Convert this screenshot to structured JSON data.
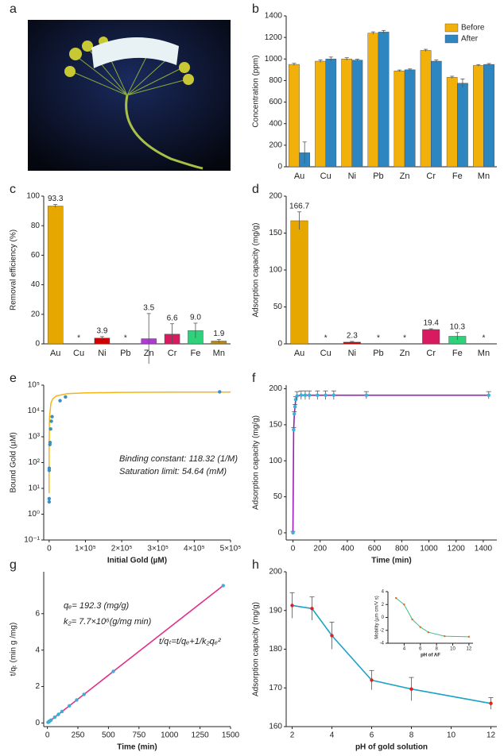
{
  "image_panel": {
    "panel": "a"
  },
  "chart_data": [
    {
      "panel": "b",
      "type": "bar",
      "ylabel": "Concentration (ppm)",
      "categories": [
        "Au",
        "Cu",
        "Ni",
        "Pb",
        "Zn",
        "Cr",
        "Fe",
        "Mn"
      ],
      "series": [
        {
          "name": "Before",
          "color": "#f2b00a",
          "values": [
            950,
            980,
            1000,
            1240,
            890,
            1080,
            830,
            940
          ],
          "errors": [
            10,
            12,
            12,
            12,
            8,
            10,
            10,
            8
          ]
        },
        {
          "name": "After",
          "color": "#2e86c1",
          "values": [
            130,
            1000,
            990,
            1250,
            900,
            980,
            775,
            950
          ],
          "errors": [
            100,
            18,
            8,
            15,
            8,
            12,
            40,
            8
          ]
        }
      ],
      "ylim": [
        0,
        1400
      ],
      "yticks": [
        0,
        200,
        400,
        600,
        800,
        1000,
        1200,
        1400
      ],
      "legend": "upper right"
    },
    {
      "panel": "c",
      "type": "bar",
      "ylabel": "Removal efficiency (%)",
      "categories": [
        "Au",
        "Cu",
        "Ni",
        "Pb",
        "Zn",
        "Cr",
        "Fe",
        "Mn"
      ],
      "values": [
        93.3,
        null,
        3.9,
        null,
        3.5,
        6.6,
        9.0,
        1.9
      ],
      "value_labels": [
        "93.3",
        "*",
        "3.9",
        "*",
        "3.5",
        "6.6",
        "9.0",
        "1.9"
      ],
      "colors": [
        "#e6a700",
        null,
        "#d00000",
        null,
        "#b03ad6",
        "#d81b60",
        "#2fd17a",
        "#b5891f"
      ],
      "errors": [
        1,
        null,
        1,
        null,
        17,
        7,
        5,
        1
      ],
      "ylim": [
        0,
        100
      ],
      "yticks": [
        0,
        20,
        40,
        60,
        80,
        100
      ]
    },
    {
      "panel": "d",
      "type": "bar",
      "ylabel": "Adsorption capacity (mg/g)",
      "categories": [
        "Au",
        "Cu",
        "Ni",
        "Pb",
        "Zn",
        "Cr",
        "Fe",
        "Mn"
      ],
      "values": [
        166.7,
        null,
        2.3,
        null,
        null,
        19.4,
        10.3,
        null
      ],
      "value_labels": [
        "166.7",
        "*",
        "2.3",
        "*",
        "*",
        "19.4",
        "10.3",
        "*"
      ],
      "colors": [
        "#e6a700",
        null,
        "#d00000",
        null,
        null,
        "#d81b60",
        "#2fd17a",
        null
      ],
      "errors": [
        12,
        null,
        1,
        null,
        null,
        1,
        5,
        null
      ],
      "ylim": [
        0,
        200
      ],
      "yticks": [
        0,
        50,
        100,
        150,
        200
      ]
    },
    {
      "panel": "e",
      "type": "scatter",
      "xlabel": "Initial Gold (µM)",
      "ylabel": "Bound Gold (µM)",
      "x": [
        10,
        15,
        200,
        250,
        2000,
        2500,
        4000,
        6000,
        8000,
        30000,
        45000,
        470000
      ],
      "values": [
        3,
        4,
        50,
        60,
        500,
        600,
        2000,
        4000,
        6000,
        25000,
        35000,
        55000
      ],
      "color": "#3a8fc2",
      "fit": {
        "color": "#f5b614",
        "x": [
          1,
          10,
          100,
          1000,
          5000,
          10000,
          20000,
          50000,
          100000,
          200000,
          300000,
          400000,
          500000
        ],
        "values": [
          6.47,
          64.6,
          637.6,
          5770,
          20300,
          29610,
          38410,
          46740,
          50380,
          52420,
          53140,
          53520,
          53730
        ]
      },
      "xlim": [
        -15000,
        500000
      ],
      "xticks": [
        0,
        {
          "value": 100000,
          "label": "1×10⁵"
        },
        {
          "value": 200000,
          "label": "2×10⁵"
        },
        {
          "value": 300000,
          "label": "3×10⁵"
        },
        {
          "value": 400000,
          "label": "4×10⁵"
        },
        {
          "value": 500000,
          "label": "5×10⁵"
        }
      ],
      "log_y": true,
      "ylim": [
        0.1,
        100000
      ],
      "yticks": [
        {
          "value": 0.1,
          "label": "10⁻¹"
        },
        {
          "value": 1,
          "label": "10⁰"
        },
        {
          "value": 10,
          "label": "10¹"
        },
        {
          "value": 100,
          "label": "10²"
        },
        {
          "value": 1000,
          "label": "10³"
        },
        {
          "value": 10000,
          "label": "10⁴"
        },
        {
          "value": 100000,
          "label": "10⁵"
        }
      ],
      "annotations": [
        "Binding constant: 118.32 (1/M)",
        "Saturation limit: 54.64 (mM)"
      ]
    },
    {
      "panel": "f",
      "type": "line",
      "xlabel": "Time (min)",
      "ylabel": "Adsorption capacity (mg/g)",
      "x": [
        0,
        5,
        10,
        15,
        20,
        30,
        60,
        90,
        120,
        180,
        240,
        300,
        540,
        1440
      ],
      "values": [
        0,
        143,
        165,
        175,
        185,
        190,
        191,
        191,
        191,
        191,
        191,
        191,
        191,
        191
      ],
      "errors": [
        2,
        3,
        3,
        3,
        4,
        6,
        6,
        6,
        6,
        6,
        6,
        6,
        5,
        5
      ],
      "color": "#9b1fb5",
      "marker_color": "#3ab0d8",
      "xlim": [
        -50,
        1500
      ],
      "xticks": [
        0,
        200,
        400,
        600,
        800,
        1000,
        1200,
        1400
      ],
      "ylim": [
        -10,
        205
      ],
      "yticks": [
        0,
        50,
        100,
        150,
        200
      ]
    },
    {
      "panel": "g",
      "type": "line",
      "xlabel": "Time (min)",
      "ylabel": "t/qₜ (min g /mg)",
      "x": [
        5,
        10,
        15,
        20,
        30,
        60,
        90,
        120,
        180,
        240,
        300,
        540,
        1440
      ],
      "values": [
        0.035,
        0.06,
        0.086,
        0.108,
        0.158,
        0.314,
        0.47,
        0.63,
        0.94,
        1.26,
        1.57,
        2.83,
        7.54
      ],
      "color": "#e0308a",
      "marker_color": "#3ab0d8",
      "xlim": [
        -30,
        1500
      ],
      "xticks": [
        0,
        250,
        500,
        750,
        1000,
        1250,
        1500
      ],
      "ylim": [
        -0.2,
        8.3
      ],
      "yticks": [
        0,
        2,
        4,
        6
      ],
      "annotations": [
        "qₑ= 192.3 (mg/g)",
        "k₂= 7.7×10⁶(g/mg min)",
        "t/qₜ=t/qₑ+1/k₂qₑ²"
      ]
    },
    {
      "panel": "h",
      "type": "line",
      "xlabel": "pH of gold solution",
      "ylabel": "Adsorption capacity (mg/g)",
      "x": [
        2,
        3,
        4,
        6,
        8,
        12
      ],
      "values": [
        191.3,
        190.5,
        183.5,
        172,
        169.7,
        166
      ],
      "errors": [
        3.3,
        3,
        3.5,
        2.5,
        3,
        1.5
      ],
      "color": "#1ba3c6",
      "marker_color": "#e02020",
      "xlim": [
        1.7,
        12.3
      ],
      "xticks": [
        2,
        4,
        6,
        8,
        10,
        12
      ],
      "ylim": [
        160,
        200
      ],
      "yticks": [
        160,
        170,
        180,
        190,
        200
      ],
      "inset": {
        "type": "line",
        "xlabel": "pH of AF",
        "ylabel": "Mobility (µm cm/V s)",
        "x": [
          3,
          4,
          5,
          6,
          7,
          9,
          12
        ],
        "values": [
          3,
          2,
          -0.3,
          -1.5,
          -2.3,
          -2.9,
          -3.0
        ],
        "color": "#3cc08a",
        "marker_color": "#e06a20",
        "xlim": [
          2,
          12.5
        ],
        "xticks": [
          4,
          6,
          8,
          10,
          12
        ],
        "ylim": [
          -4,
          4
        ],
        "yticks": [
          -4,
          -2,
          0,
          2,
          4
        ]
      }
    }
  ]
}
